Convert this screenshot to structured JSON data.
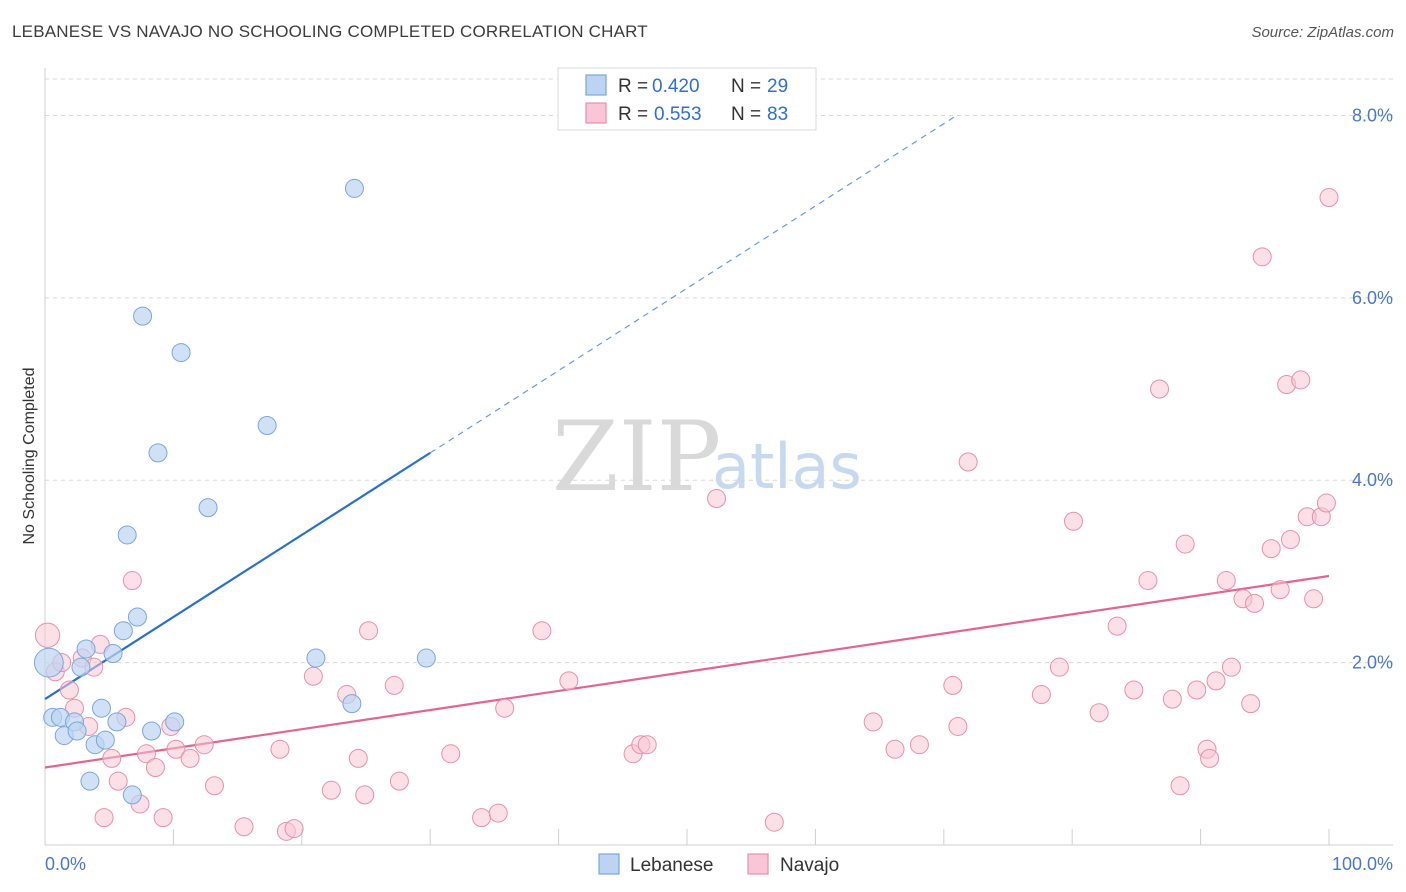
{
  "header": {
    "title": "LEBANESE VS NAVAJO NO SCHOOLING COMPLETED CORRELATION CHART",
    "source": "Source: ZipAtlas.com"
  },
  "watermark": {
    "zip": "ZIP",
    "atlas": "atlas"
  },
  "colors": {
    "lebanese_fill": "#bcd4f2",
    "lebanese_stroke": "#7aa6dc",
    "lebanese_line": "#2a70c8",
    "navajo_fill": "#f8c6d6",
    "navajo_stroke": "#e98fae",
    "navajo_line": "#e0668f",
    "grid": "#d8d8d8",
    "tick_label": "#4a78c8"
  },
  "legend": {
    "rows": [
      {
        "r_label": "R =",
        "r_value": "0.420",
        "n_label": "N =",
        "n_value": "29"
      },
      {
        "r_label": "R =",
        "r_value": "0.553",
        "n_label": "N =",
        "n_value": "83"
      }
    ]
  },
  "chart_data": {
    "type": "scatter",
    "title": "LEBANESE VS NAVAJO NO SCHOOLING COMPLETED CORRELATION CHART",
    "xlabel": "",
    "ylabel": "No Schooling Completed",
    "xlim": [
      0,
      100
    ],
    "ylim": [
      0,
      8.4
    ],
    "x_tick_labels": [
      "0.0%",
      "100.0%"
    ],
    "y_ticks": [
      2,
      4,
      6,
      8
    ],
    "y_tick_labels": [
      "2.0%",
      "4.0%",
      "6.0%",
      "8.0%"
    ],
    "grid": true,
    "legend_position": "top-center",
    "series": [
      {
        "name": "Lebanese",
        "r": 0.42,
        "n": 29,
        "trend": {
          "x0": 0,
          "y0": 1.6,
          "x1": 30,
          "y1": 4.3,
          "dash_to_x": 71,
          "dash_to_y": 8.0
        },
        "points": [
          {
            "x": 0.3,
            "y": 2.0,
            "s": 1.6
          },
          {
            "x": 0.6,
            "y": 1.4
          },
          {
            "x": 1.2,
            "y": 1.4
          },
          {
            "x": 1.5,
            "y": 1.2
          },
          {
            "x": 2.3,
            "y": 1.35
          },
          {
            "x": 2.5,
            "y": 1.25
          },
          {
            "x": 2.8,
            "y": 1.95
          },
          {
            "x": 3.2,
            "y": 2.15
          },
          {
            "x": 3.5,
            "y": 0.7
          },
          {
            "x": 3.9,
            "y": 1.1
          },
          {
            "x": 4.4,
            "y": 1.5
          },
          {
            "x": 4.7,
            "y": 1.15
          },
          {
            "x": 5.3,
            "y": 2.1
          },
          {
            "x": 5.6,
            "y": 1.35
          },
          {
            "x": 6.1,
            "y": 2.35
          },
          {
            "x": 6.4,
            "y": 3.4
          },
          {
            "x": 6.8,
            "y": 0.55
          },
          {
            "x": 7.2,
            "y": 2.5
          },
          {
            "x": 7.6,
            "y": 5.8
          },
          {
            "x": 8.3,
            "y": 1.25
          },
          {
            "x": 8.8,
            "y": 4.3
          },
          {
            "x": 10.1,
            "y": 1.35
          },
          {
            "x": 10.6,
            "y": 5.4
          },
          {
            "x": 12.7,
            "y": 3.7
          },
          {
            "x": 17.3,
            "y": 4.6
          },
          {
            "x": 21.1,
            "y": 2.05
          },
          {
            "x": 23.9,
            "y": 1.55
          },
          {
            "x": 24.1,
            "y": 7.2
          },
          {
            "x": 29.7,
            "y": 2.05
          }
        ]
      },
      {
        "name": "Navajo",
        "r": 0.553,
        "n": 83,
        "trend": {
          "x0": 0,
          "y0": 0.85,
          "x1": 100,
          "y1": 2.95
        },
        "points": [
          {
            "x": 0.2,
            "y": 2.3,
            "s": 1.35
          },
          {
            "x": 0.8,
            "y": 1.9
          },
          {
            "x": 1.3,
            "y": 2.0
          },
          {
            "x": 1.9,
            "y": 1.7
          },
          {
            "x": 2.3,
            "y": 1.5
          },
          {
            "x": 2.9,
            "y": 2.05
          },
          {
            "x": 3.4,
            "y": 1.3
          },
          {
            "x": 3.8,
            "y": 1.95
          },
          {
            "x": 4.3,
            "y": 2.2
          },
          {
            "x": 4.6,
            "y": 0.3
          },
          {
            "x": 5.2,
            "y": 0.95
          },
          {
            "x": 5.7,
            "y": 0.7
          },
          {
            "x": 6.3,
            "y": 1.4
          },
          {
            "x": 6.8,
            "y": 2.9
          },
          {
            "x": 7.4,
            "y": 0.45
          },
          {
            "x": 7.9,
            "y": 1.0
          },
          {
            "x": 8.6,
            "y": 0.85
          },
          {
            "x": 9.2,
            "y": 0.3
          },
          {
            "x": 9.8,
            "y": 1.3
          },
          {
            "x": 10.2,
            "y": 1.05
          },
          {
            "x": 11.3,
            "y": 0.95
          },
          {
            "x": 12.4,
            "y": 1.1
          },
          {
            "x": 13.2,
            "y": 0.65
          },
          {
            "x": 15.5,
            "y": 0.2
          },
          {
            "x": 18.3,
            "y": 1.05
          },
          {
            "x": 18.8,
            "y": 0.15
          },
          {
            "x": 19.4,
            "y": 0.18
          },
          {
            "x": 20.9,
            "y": 1.85
          },
          {
            "x": 22.3,
            "y": 0.6
          },
          {
            "x": 23.5,
            "y": 1.65
          },
          {
            "x": 24.4,
            "y": 0.95
          },
          {
            "x": 24.9,
            "y": 0.55
          },
          {
            "x": 25.2,
            "y": 2.35
          },
          {
            "x": 27.2,
            "y": 1.75
          },
          {
            "x": 27.6,
            "y": 0.7
          },
          {
            "x": 31.6,
            "y": 1.0
          },
          {
            "x": 34.0,
            "y": 0.3
          },
          {
            "x": 35.3,
            "y": 0.35
          },
          {
            "x": 35.8,
            "y": 1.5
          },
          {
            "x": 38.7,
            "y": 2.35
          },
          {
            "x": 40.8,
            "y": 1.8
          },
          {
            "x": 45.8,
            "y": 1.0
          },
          {
            "x": 46.4,
            "y": 1.1
          },
          {
            "x": 46.9,
            "y": 1.1
          },
          {
            "x": 52.3,
            "y": 3.8
          },
          {
            "x": 56.8,
            "y": 0.25
          },
          {
            "x": 64.5,
            "y": 1.35
          },
          {
            "x": 66.2,
            "y": 1.05
          },
          {
            "x": 68.1,
            "y": 1.1
          },
          {
            "x": 70.7,
            "y": 1.75
          },
          {
            "x": 71.1,
            "y": 1.3
          },
          {
            "x": 71.9,
            "y": 4.2
          },
          {
            "x": 77.6,
            "y": 1.65
          },
          {
            "x": 79.0,
            "y": 1.95
          },
          {
            "x": 80.1,
            "y": 3.55
          },
          {
            "x": 82.1,
            "y": 1.45
          },
          {
            "x": 83.5,
            "y": 2.4
          },
          {
            "x": 84.8,
            "y": 1.7
          },
          {
            "x": 85.9,
            "y": 2.9
          },
          {
            "x": 86.8,
            "y": 5.0
          },
          {
            "x": 87.8,
            "y": 1.6
          },
          {
            "x": 88.4,
            "y": 0.65
          },
          {
            "x": 88.8,
            "y": 3.3
          },
          {
            "x": 89.7,
            "y": 1.7
          },
          {
            "x": 90.5,
            "y": 1.05
          },
          {
            "x": 90.7,
            "y": 0.95
          },
          {
            "x": 91.2,
            "y": 1.8
          },
          {
            "x": 92.0,
            "y": 2.9
          },
          {
            "x": 92.4,
            "y": 1.95
          },
          {
            "x": 93.3,
            "y": 2.7
          },
          {
            "x": 93.9,
            "y": 1.55
          },
          {
            "x": 94.2,
            "y": 2.65
          },
          {
            "x": 94.8,
            "y": 6.45
          },
          {
            "x": 95.5,
            "y": 3.25
          },
          {
            "x": 96.2,
            "y": 2.8
          },
          {
            "x": 96.7,
            "y": 5.05
          },
          {
            "x": 97.0,
            "y": 3.35
          },
          {
            "x": 97.8,
            "y": 5.1
          },
          {
            "x": 98.3,
            "y": 3.6
          },
          {
            "x": 98.8,
            "y": 2.7
          },
          {
            "x": 99.4,
            "y": 3.6
          },
          {
            "x": 99.8,
            "y": 3.75
          },
          {
            "x": 100.0,
            "y": 7.1
          }
        ]
      }
    ]
  }
}
